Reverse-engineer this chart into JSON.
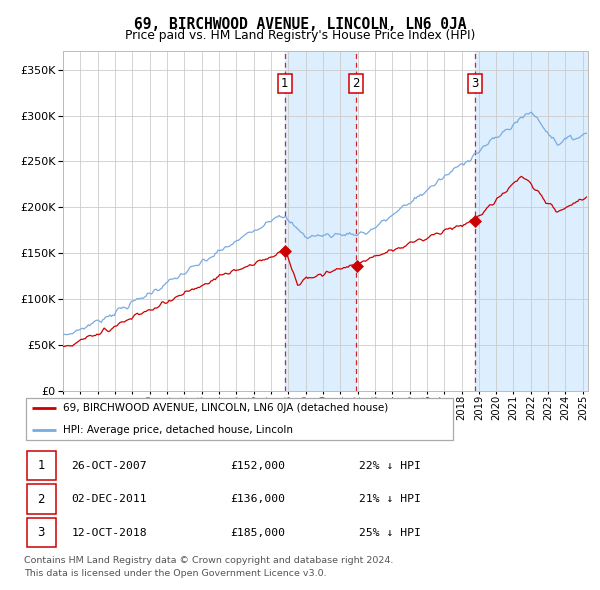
{
  "title": "69, BIRCHWOOD AVENUE, LINCOLN, LN6 0JA",
  "subtitle": "Price paid vs. HM Land Registry's House Price Index (HPI)",
  "sale_label": "69, BIRCHWOOD AVENUE, LINCOLN, LN6 0JA (detached house)",
  "hpi_label": "HPI: Average price, detached house, Lincoln",
  "footer1": "Contains HM Land Registry data © Crown copyright and database right 2024.",
  "footer2": "This data is licensed under the Open Government Licence v3.0.",
  "transactions": [
    {
      "num": 1,
      "date": "26-OCT-2007",
      "price": 152000,
      "pct": "22%",
      "dir": "↓"
    },
    {
      "num": 2,
      "date": "02-DEC-2011",
      "price": 136000,
      "pct": "21%",
      "dir": "↓"
    },
    {
      "num": 3,
      "date": "12-OCT-2018",
      "price": 185000,
      "pct": "25%",
      "dir": "↓"
    }
  ],
  "sale_color": "#cc0000",
  "hpi_color": "#7aabe0",
  "shade_color": "#ddeeff",
  "dashed_color": "#cc0000",
  "grid_color": "#cccccc",
  "ylim": [
    0,
    370000
  ],
  "yticks": [
    0,
    50000,
    100000,
    150000,
    200000,
    250000,
    300000,
    350000
  ],
  "start_year": 1995,
  "end_year": 2025,
  "t1": 2007.789,
  "t2": 2011.917,
  "t3": 2018.789
}
